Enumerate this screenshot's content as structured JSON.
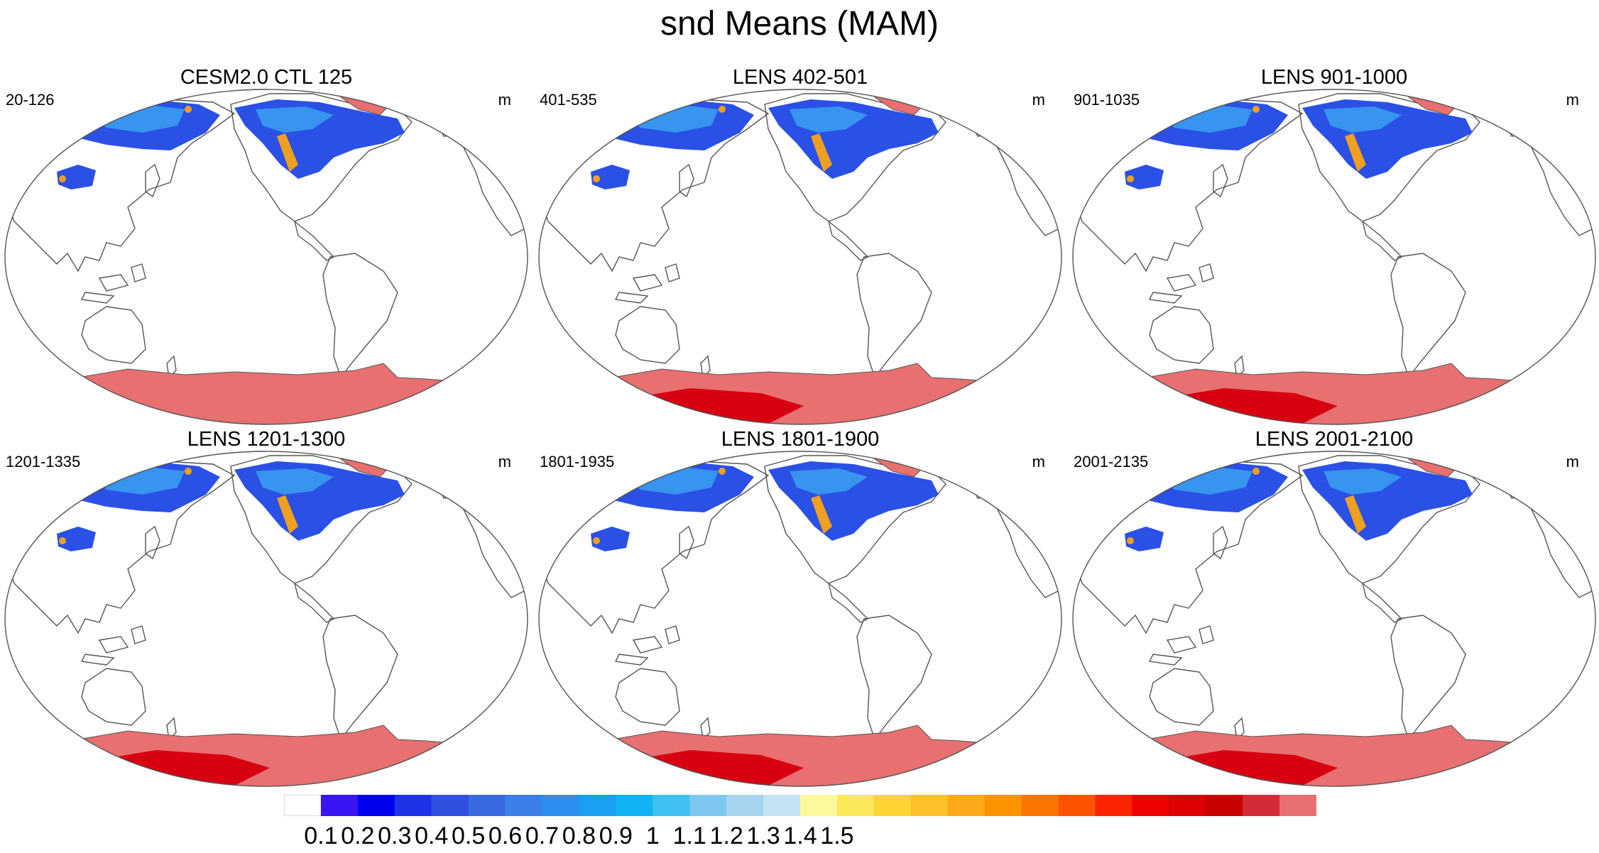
{
  "title": "snd Means (MAM)",
  "units": "m",
  "panels": [
    {
      "title": "CESM2.0 CTL 125",
      "range": "20-126",
      "antarctic_deep": false
    },
    {
      "title": "LENS 402-501",
      "range": "401-535",
      "antarctic_deep": true
    },
    {
      "title": "LENS 901-1000",
      "range": "901-1035",
      "antarctic_deep": true
    },
    {
      "title": "LENS 1201-1300",
      "range": "1201-1335",
      "antarctic_deep": true
    },
    {
      "title": "LENS 1801-1900",
      "range": "1801-1935",
      "antarctic_deep": true
    },
    {
      "title": "LENS 2001-2100",
      "range": "2001-2135",
      "antarctic_deep": true
    }
  ],
  "colorbar": {
    "colors": [
      "#ffffff",
      "#3b14f5",
      "#0000f0",
      "#1c34e6",
      "#3250e0",
      "#3a6ae0",
      "#3a80e8",
      "#2a8ff0",
      "#1aa0f0",
      "#10b4f4",
      "#40c0f0",
      "#7ec8f0",
      "#a4d4f0",
      "#c4e4f4",
      "#fcf89c",
      "#fce858",
      "#fcd434",
      "#fcc02c",
      "#fca818",
      "#fc9400",
      "#fc7400",
      "#fc5400",
      "#fc2400",
      "#f00000",
      "#dc0000",
      "#c80000",
      "#d42c34",
      "#e87070"
    ],
    "labels": [
      "0.1",
      "0.2",
      "0.3",
      "0.4",
      "0.5",
      "0.6",
      "0.7",
      "0.8",
      "0.9",
      "1",
      "1.1",
      "1.2",
      "1.3",
      "1.4",
      "1.5"
    ]
  },
  "colors": {
    "ocean": "#ffffff",
    "coastline": "#555555",
    "greenland": "#e87070",
    "antarctica": "#e87070",
    "antarctica_deep": "#d80010",
    "snow_low": "#2a50e6",
    "snow_mid": "#3aa0f0",
    "snow_high": "#f0a020"
  }
}
